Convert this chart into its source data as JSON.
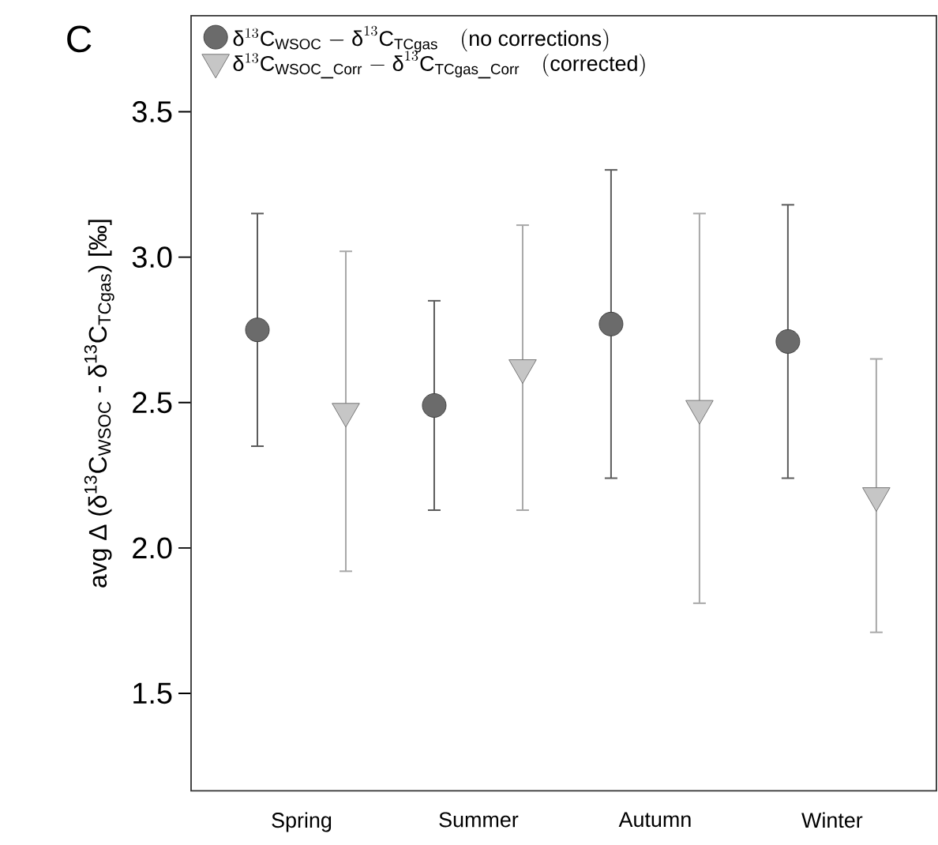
{
  "chart_data": {
    "type": "scatter",
    "ylabel": "avg Δ (δ$^{13}$C$_{WSOC}$ - δ$^{13}$C$_{TCgas}$)  [‰]",
    "annotations": [
      "C"
    ],
    "categories": [
      "Spring",
      "Summer",
      "Autumn",
      "Winter"
    ],
    "series": [
      {
        "name": "\\mathrm{δ}^{13}\\mathrm{C}_{\\mathrm{WSOC}}\\mathrm{\\ -\\ δ}^{13}\\mathrm{C}_{\\mathrm{TCgas}}\\mathrm{\\quad (no\\ corrections)}",
        "color": "#6b6b6b",
        "marker": "circle",
        "values": [
          2.75,
          2.49,
          2.77,
          2.71
        ],
        "errors": [
          [
            2.35,
            3.15
          ],
          [
            2.13,
            2.85
          ],
          [
            2.24,
            3.3
          ],
          [
            2.24,
            3.18
          ]
        ]
      },
      {
        "name": "\\mathrm{δ}^{13}\\mathrm{C}_{\\mathrm{WSOC\\_Corr}}\\mathrm{\\ -\\ δ}^{13}\\mathrm{C}_{\\mathrm{TCgas\\_Corr}}\\mathrm{\\quad (corrected)}",
        "color": "#c6c6c6",
        "marker": "triangle",
        "values": [
          2.47,
          2.62,
          2.48,
          2.18
        ],
        "errors": [
          [
            1.92,
            3.02
          ],
          [
            2.13,
            3.11
          ],
          [
            1.81,
            3.15
          ],
          [
            1.71,
            2.65
          ]
        ]
      }
    ],
    "ylim": [
      1.165,
      3.83
    ],
    "yticks": [
      1.5,
      {
        "value": 2.0,
        "label": "2.0"
      },
      2.5,
      {
        "value": 3.0,
        "label": "3.0"
      },
      3.5
    ],
    "legend": "top left",
    "grid": false
  }
}
